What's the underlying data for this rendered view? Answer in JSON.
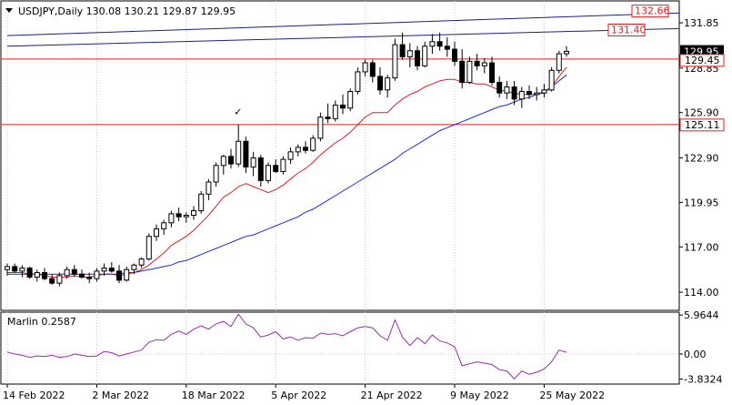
{
  "symbol_header": "USDJPY,Daily  130.08 130.21 129.87 129.95",
  "oscillator_header": "Marlin 0.2587",
  "colors": {
    "bull_fill": "#ffffff",
    "bear_fill": "#000000",
    "candle_outline": "#000000",
    "ma_fast": "#e11d1d",
    "ma_slow": "#1b2bd6",
    "channel": "#1a237e",
    "horizontal_level": "#e11d1d",
    "oscillator": "#9c27b0",
    "grid": "#c8c8c8"
  },
  "chart_data": [
    {
      "type": "candlestick",
      "title": "USDJPY,Daily",
      "ohlc_header": {
        "open": 130.08,
        "high": 130.21,
        "low": 129.87,
        "close": 129.95
      },
      "ylim": [
        112.8,
        133.3
      ],
      "y_ticks": [
        114.0,
        117.0,
        119.95,
        122.9,
        125.9,
        128.85,
        131.85
      ],
      "x_ticks": [
        "14 Feb 2022",
        "2 Mar 2022",
        "18 Mar 2022",
        "5 Apr 2022",
        "21 Apr 2022",
        "9 May 2022",
        "25 May 2022"
      ],
      "x_tick_index": [
        0,
        12,
        24,
        36,
        48,
        60,
        72
      ],
      "current_price_label": "129.95",
      "candles": [
        [
          115.5,
          115.9,
          115.1,
          115.7
        ],
        [
          115.7,
          115.9,
          115.3,
          115.4
        ],
        [
          115.4,
          115.8,
          115.0,
          115.6
        ],
        [
          115.6,
          115.7,
          114.9,
          115.0
        ],
        [
          115.0,
          115.5,
          114.7,
          115.3
        ],
        [
          115.3,
          115.6,
          114.8,
          114.9
        ],
        [
          114.9,
          115.2,
          114.5,
          114.6
        ],
        [
          114.6,
          115.3,
          114.4,
          115.1
        ],
        [
          115.1,
          115.7,
          114.9,
          115.5
        ],
        [
          115.5,
          115.8,
          115.0,
          115.2
        ],
        [
          115.2,
          115.5,
          114.9,
          115.0
        ],
        [
          115.0,
          115.3,
          114.6,
          114.9
        ],
        [
          114.9,
          115.6,
          114.7,
          115.4
        ],
        [
          115.4,
          115.9,
          115.1,
          115.6
        ],
        [
          115.6,
          116.0,
          115.3,
          115.4
        ],
        [
          115.4,
          115.8,
          114.6,
          114.8
        ],
        [
          114.8,
          115.7,
          114.7,
          115.5
        ],
        [
          115.5,
          115.9,
          115.2,
          115.8
        ],
        [
          115.8,
          116.3,
          115.6,
          116.2
        ],
        [
          116.2,
          117.9,
          116.1,
          117.7
        ],
        [
          117.7,
          118.5,
          117.4,
          118.2
        ],
        [
          118.2,
          118.8,
          117.8,
          118.6
        ],
        [
          118.6,
          119.4,
          118.3,
          119.2
        ],
        [
          119.2,
          119.6,
          118.7,
          119.0
        ],
        [
          119.0,
          119.3,
          118.6,
          119.1
        ],
        [
          119.1,
          119.7,
          118.8,
          119.4
        ],
        [
          119.4,
          120.7,
          119.2,
          120.5
        ],
        [
          120.5,
          121.5,
          120.1,
          121.3
        ],
        [
          121.3,
          122.6,
          121.0,
          122.4
        ],
        [
          122.4,
          123.1,
          121.8,
          123.0
        ],
        [
          123.0,
          123.5,
          122.2,
          122.5
        ],
        [
          122.5,
          125.1,
          122.3,
          124.0
        ],
        [
          124.0,
          124.3,
          121.9,
          122.3
        ],
        [
          122.3,
          123.3,
          121.7,
          122.9
        ],
        [
          122.9,
          123.1,
          121.0,
          121.4
        ],
        [
          121.4,
          122.6,
          121.2,
          122.4
        ],
        [
          122.4,
          122.8,
          121.9,
          122.0
        ],
        [
          122.0,
          123.0,
          121.8,
          122.8
        ],
        [
          122.8,
          123.6,
          122.5,
          123.3
        ],
        [
          123.3,
          123.8,
          123.0,
          123.6
        ],
        [
          123.6,
          124.0,
          123.2,
          123.4
        ],
        [
          123.4,
          124.4,
          123.3,
          124.2
        ],
        [
          124.2,
          125.9,
          124.0,
          125.6
        ],
        [
          125.6,
          126.5,
          125.2,
          125.5
        ],
        [
          125.5,
          126.7,
          125.3,
          126.4
        ],
        [
          126.4,
          127.1,
          125.8,
          126.2
        ],
        [
          126.2,
          127.5,
          126.0,
          127.3
        ],
        [
          127.3,
          128.9,
          127.1,
          128.6
        ],
        [
          128.6,
          129.4,
          128.3,
          129.2
        ],
        [
          129.2,
          129.4,
          127.9,
          128.3
        ],
        [
          128.3,
          128.9,
          127.1,
          127.4
        ],
        [
          127.4,
          128.4,
          126.9,
          128.2
        ],
        [
          128.2,
          130.8,
          128.0,
          130.4
        ],
        [
          130.4,
          131.2,
          129.4,
          129.6
        ],
        [
          129.6,
          130.5,
          128.9,
          130.0
        ],
        [
          130.0,
          130.3,
          128.7,
          129.0
        ],
        [
          129.0,
          130.6,
          128.9,
          130.3
        ],
        [
          130.3,
          131.1,
          129.8,
          130.6
        ],
        [
          130.6,
          131.2,
          130.0,
          130.3
        ],
        [
          130.3,
          130.9,
          129.6,
          130.1
        ],
        [
          130.1,
          130.6,
          129.0,
          129.3
        ],
        [
          129.3,
          130.1,
          127.5,
          127.9
        ],
        [
          127.9,
          129.6,
          127.8,
          129.3
        ],
        [
          129.3,
          129.8,
          128.7,
          129.0
        ],
        [
          129.0,
          129.5,
          128.5,
          129.2
        ],
        [
          129.2,
          129.6,
          127.7,
          127.9
        ],
        [
          127.9,
          128.3,
          126.9,
          127.2
        ],
        [
          127.2,
          128.0,
          126.8,
          127.6
        ],
        [
          127.6,
          128.0,
          126.4,
          126.8
        ],
        [
          126.8,
          127.6,
          126.2,
          127.3
        ],
        [
          127.3,
          127.7,
          126.8,
          127.1
        ],
        [
          127.1,
          127.6,
          126.7,
          127.2
        ],
        [
          127.2,
          127.8,
          126.9,
          127.4
        ],
        [
          127.4,
          128.9,
          127.3,
          128.7
        ],
        [
          128.7,
          130.0,
          128.5,
          129.8
        ],
        [
          129.8,
          130.3,
          129.6,
          129.95
        ]
      ],
      "series": [
        {
          "values": [
            115.3,
            115.3,
            115.3,
            115.2,
            115.2,
            115.1,
            115.0,
            115.0,
            115.0,
            115.1,
            115.0,
            115.0,
            115.1,
            115.2,
            115.2,
            115.1,
            115.2,
            115.3,
            115.5,
            115.8,
            116.2,
            116.6,
            117.1,
            117.4,
            117.7,
            118.1,
            118.6,
            119.1,
            119.7,
            120.3,
            120.6,
            121.0,
            121.2,
            121.0,
            120.8,
            120.6,
            120.8,
            121.1,
            121.5,
            121.9,
            122.2,
            122.6,
            123.1,
            123.5,
            123.9,
            124.2,
            124.6,
            125.1,
            125.6,
            125.9,
            125.9,
            125.9,
            126.4,
            126.8,
            127.1,
            127.3,
            127.6,
            127.8,
            128.0,
            128.1,
            128.1,
            127.9,
            127.9,
            127.8,
            127.8,
            127.6,
            127.4,
            127.3,
            127.2,
            127.1,
            127.1,
            127.1,
            127.2,
            127.6,
            128.3,
            128.9
          ]
        },
        {
          "values": [
            115.2,
            115.2,
            115.2,
            115.2,
            115.2,
            115.2,
            115.2,
            115.2,
            115.2,
            115.2,
            115.2,
            115.2,
            115.2,
            115.2,
            115.2,
            115.2,
            115.3,
            115.3,
            115.4,
            115.5,
            115.6,
            115.7,
            115.8,
            116.0,
            116.1,
            116.3,
            116.5,
            116.7,
            116.9,
            117.1,
            117.3,
            117.5,
            117.7,
            117.8,
            118.0,
            118.2,
            118.4,
            118.6,
            118.8,
            119.0,
            119.3,
            119.5,
            119.8,
            120.1,
            120.4,
            120.7,
            121.0,
            121.3,
            121.6,
            121.9,
            122.2,
            122.5,
            122.8,
            123.2,
            123.5,
            123.8,
            124.1,
            124.4,
            124.7,
            124.9,
            125.1,
            125.3,
            125.5,
            125.7,
            125.9,
            126.1,
            126.3,
            126.4,
            126.6,
            126.8,
            126.9,
            127.1,
            127.3,
            127.6,
            128.0,
            128.4
          ]
        }
      ],
      "horizontal_levels": [
        {
          "value": 129.45,
          "label": "129.45"
        },
        {
          "value": 125.11,
          "label": "125.11"
        }
      ],
      "target_labels": [
        {
          "value": 132.66,
          "label": "132.66"
        },
        {
          "value": 131.4,
          "label": "131.40"
        }
      ],
      "channel_lines": [
        {
          "start": [
            0,
            131.0
          ],
          "end": [
            108,
            132.8
          ]
        },
        {
          "start": [
            0,
            130.3
          ],
          "end": [
            108,
            131.7
          ]
        }
      ],
      "markers": [
        {
          "index": 31,
          "value": 125.6,
          "symbol": "✓"
        }
      ]
    },
    {
      "type": "line",
      "title": "Marlin 0.2587",
      "ylim": [
        -4.6,
        6.4
      ],
      "y_ticks": [
        5.9644,
        0.0,
        -3.8324
      ],
      "y_tick_labels": [
        "5.9644",
        "0.00",
        "-3.8324"
      ],
      "values": [
        0.3,
        0.0,
        -0.2,
        -0.5,
        -0.3,
        -0.4,
        -0.2,
        -0.5,
        -0.4,
        0.0,
        -0.2,
        -0.4,
        -0.3,
        0.4,
        0.2,
        -0.3,
        0.0,
        0.3,
        0.6,
        1.8,
        2.2,
        2.1,
        3.0,
        3.5,
        3.0,
        3.8,
        4.3,
        3.8,
        4.6,
        5.0,
        4.2,
        6.1,
        4.6,
        4.0,
        2.6,
        2.9,
        3.4,
        2.3,
        2.6,
        2.1,
        2.5,
        2.4,
        3.2,
        3.0,
        3.1,
        2.8,
        3.4,
        4.0,
        4.2,
        4.0,
        2.8,
        2.1,
        5.2,
        2.6,
        1.3,
        2.5,
        1.6,
        2.9,
        2.0,
        1.7,
        1.1,
        -1.8,
        -1.5,
        -1.2,
        -1.4,
        -1.6,
        -2.4,
        -2.6,
        -3.8,
        -2.6,
        -3.1,
        -2.8,
        -2.3,
        -1.2,
        0.6,
        0.26
      ]
    }
  ]
}
